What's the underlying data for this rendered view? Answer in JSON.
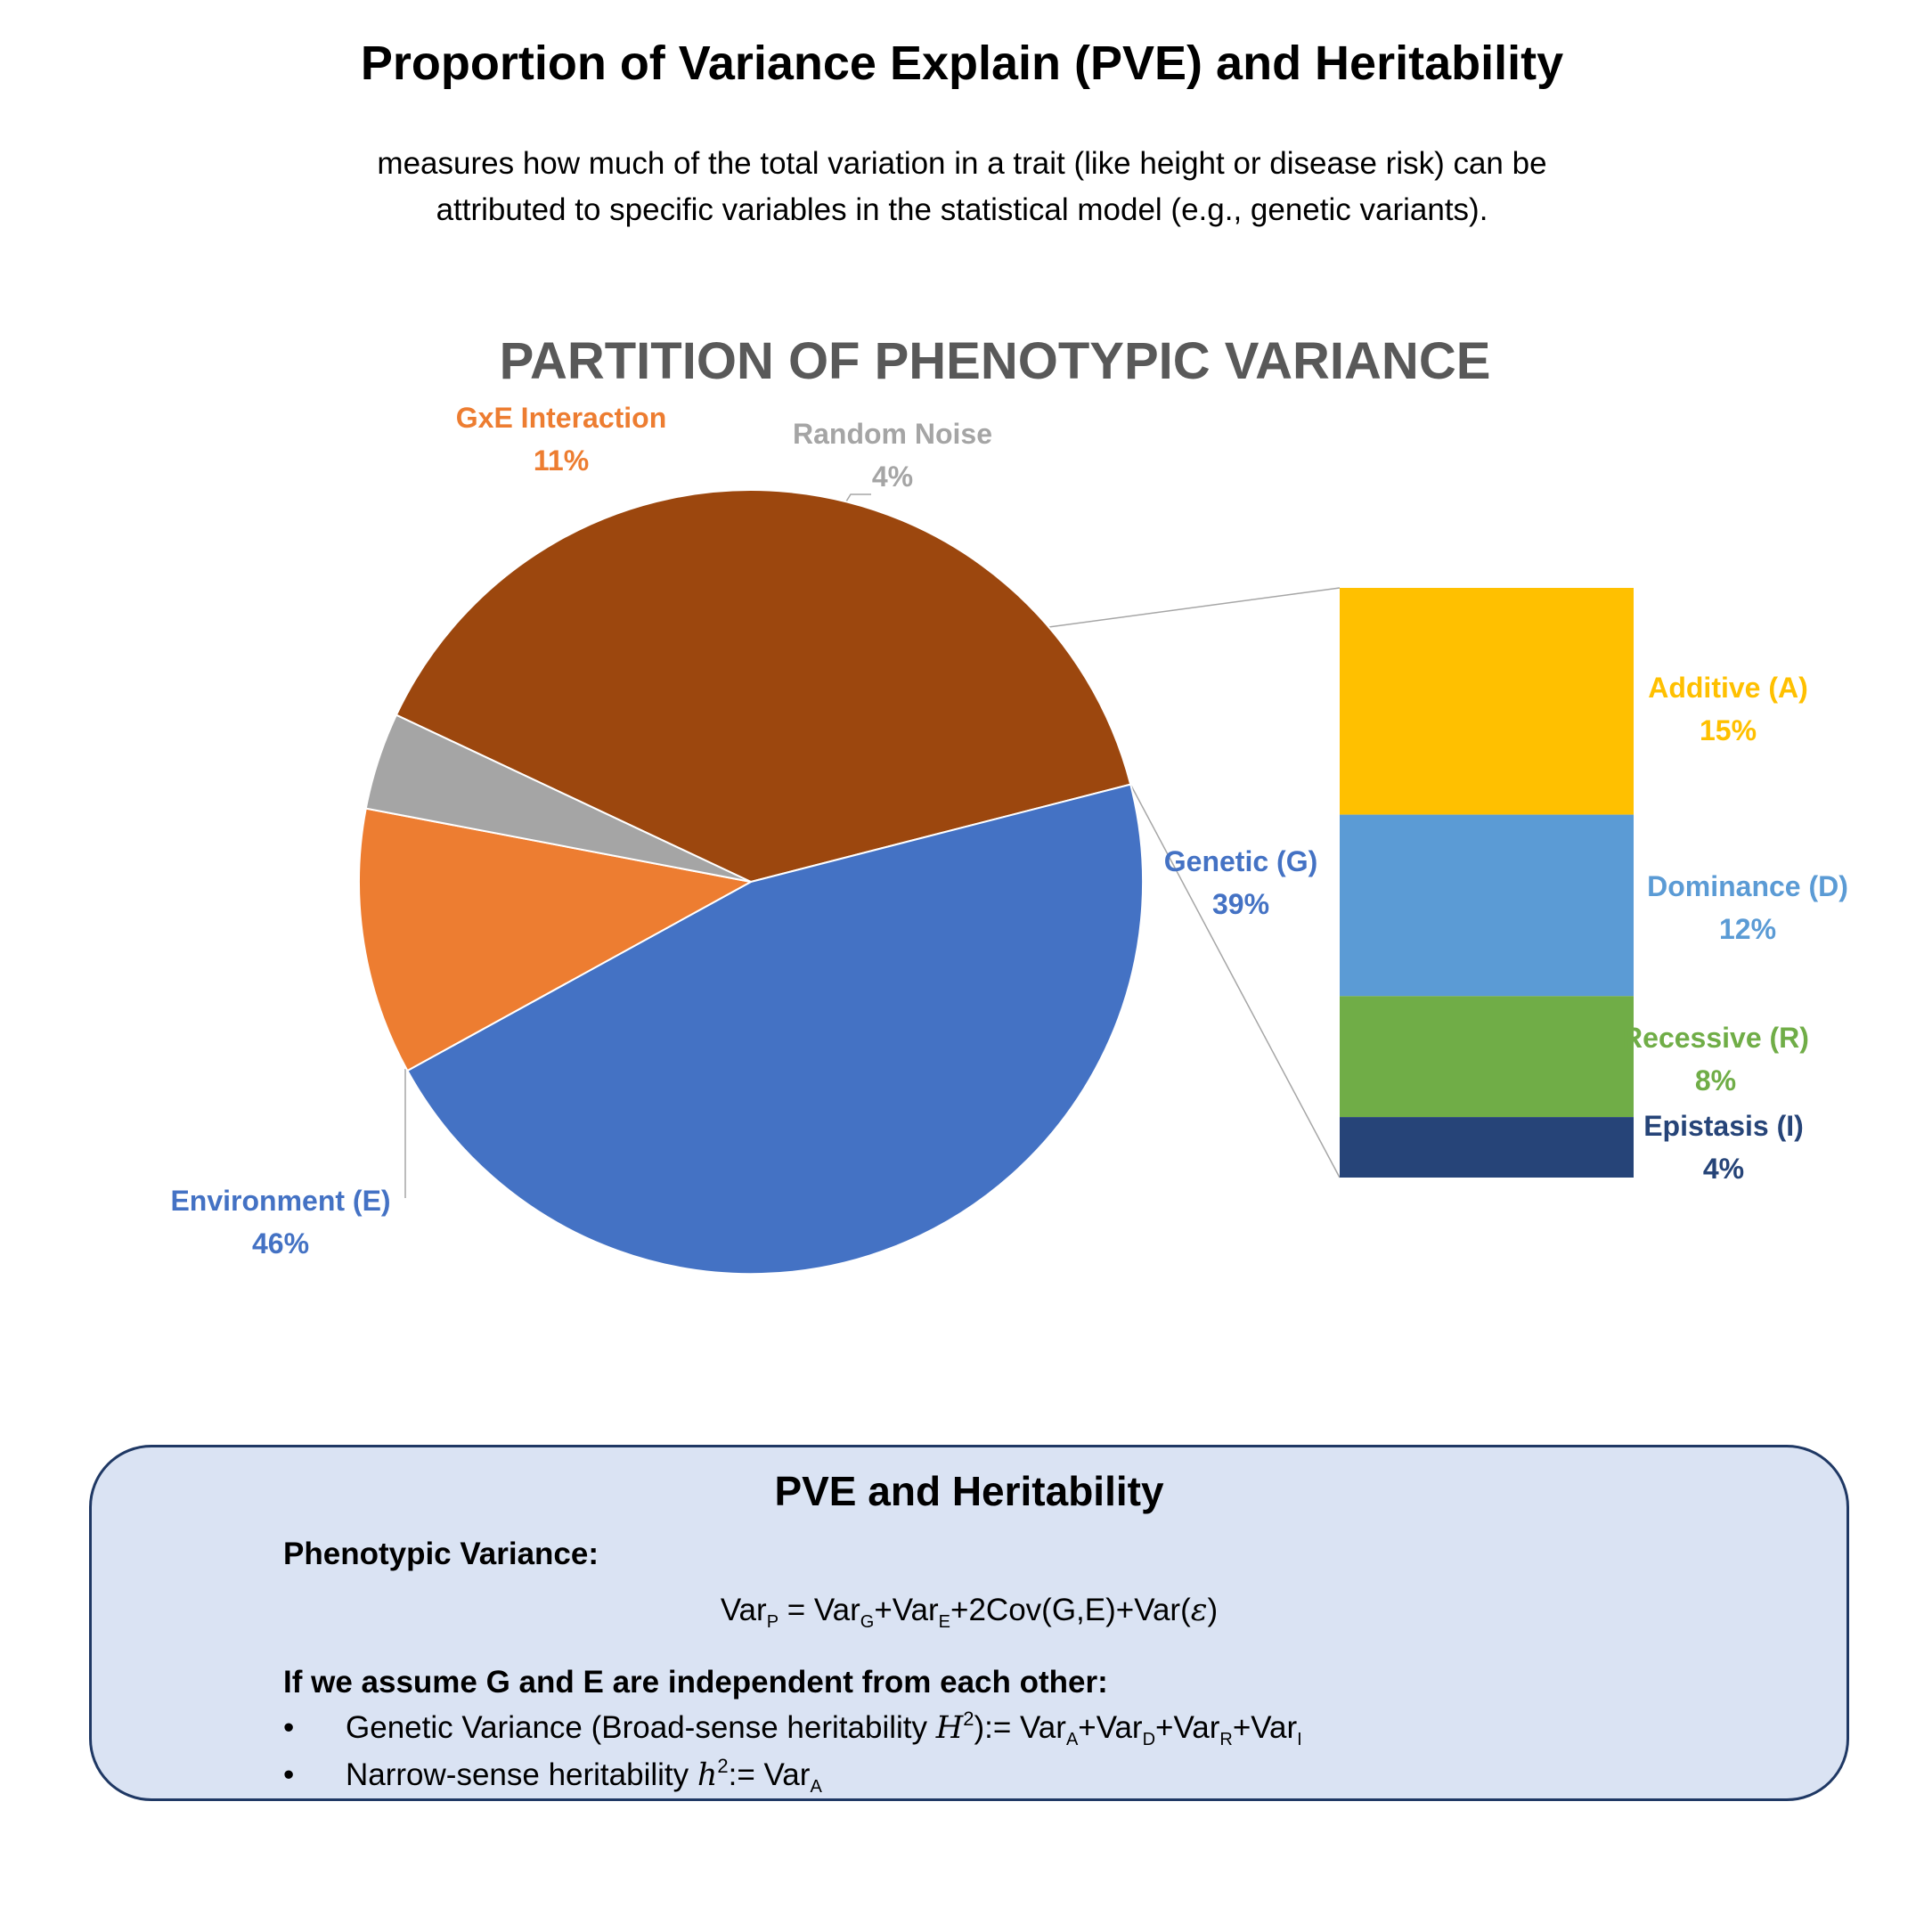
{
  "header": {
    "title": "Proportion of Variance Explain (PVE) and Heritability",
    "subtitle_line1": "measures how much of the total variation in a trait (like height or disease risk) can be",
    "subtitle_line2": "attributed to specific variables in the statistical model (e.g., genetic variants)."
  },
  "chart_data": {
    "type": "pie",
    "subtype": "bar-of-pie",
    "title": "PARTITION OF PHENOTYPIC VARIANCE",
    "pie": [
      {
        "name": "Genetic (G)",
        "value": 39,
        "label": "39%",
        "color": "#9c470e"
      },
      {
        "name": "Environment (E)",
        "value": 46,
        "label": "46%",
        "color": "#4472c4"
      },
      {
        "name": "GxE Interaction",
        "value": 11,
        "label": "11%",
        "color": "#ed7d31"
      },
      {
        "name": "Random Noise",
        "value": 4,
        "label": "4%",
        "color": "#a5a5a5"
      }
    ],
    "bar": [
      {
        "name": "Additive (A)",
        "value": 15,
        "label": "15%",
        "color": "#ffc000",
        "text_color": "#ffc000"
      },
      {
        "name": "Dominance (D)",
        "value": 12,
        "label": "12%",
        "color": "#5b9bd5",
        "text_color": "#5b9bd5"
      },
      {
        "name": "Recessive (R)",
        "value": 8,
        "label": "8%",
        "color": "#70ad47",
        "text_color": "#70ad47"
      },
      {
        "name": "Epistasis (I)",
        "value": 4,
        "label": "4%",
        "color": "#264478",
        "text_color": "#264478"
      }
    ],
    "pie_label_colors": {
      "Genetic (G)": "#4472c4",
      "Environment (E)": "#4472c4",
      "GxE Interaction": "#ed7d31",
      "Random Noise": "#a5a5a5"
    },
    "title_color": "#595959"
  },
  "info_box": {
    "title": "PVE and Heritability",
    "phenotypic_label": "Phenotypic Variance:",
    "assumption": "If we assume G and E are independent from each other:",
    "bullet_symbol": "•",
    "broad_prefix": "Genetic Variance (Broad-sense heritability ",
    "narrow_prefix": "Narrow-sense heritability "
  }
}
